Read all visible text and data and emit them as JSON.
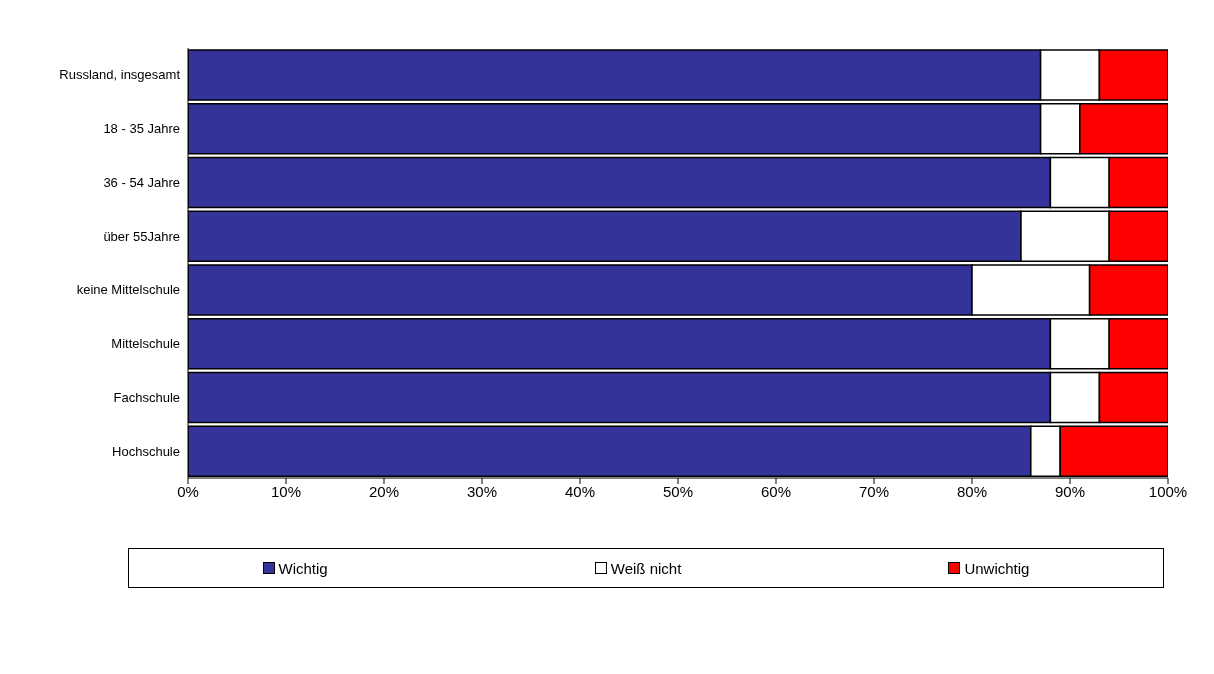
{
  "chart_data": {
    "type": "bar",
    "orientation": "horizontal",
    "stacked": true,
    "categories": [
      "Russland, insgesamt",
      "18 - 35 Jahre",
      "36 - 54 Jahre",
      "über 55Jahre",
      "keine Mittelschule",
      "Mittelschule",
      "Fachschule",
      "Hochschule"
    ],
    "series": [
      {
        "name": "Wichtig",
        "color": "#333399",
        "values": [
          87,
          87,
          88,
          85,
          80,
          88,
          88,
          86
        ]
      },
      {
        "name": "Weiß nicht",
        "color": "#ffffff",
        "values": [
          6,
          4,
          6,
          9,
          12,
          6,
          5,
          3
        ]
      },
      {
        "name": "Unwichtig",
        "color": "#ff0000",
        "values": [
          7,
          9,
          6,
          6,
          8,
          6,
          7,
          11
        ]
      }
    ],
    "xlim": [
      0,
      100
    ],
    "xticks": [
      {
        "value": 0,
        "label": "0%"
      },
      {
        "value": 10,
        "label": "10%"
      },
      {
        "value": 20,
        "label": "20%"
      },
      {
        "value": 30,
        "label": "30%"
      },
      {
        "value": 40,
        "label": "40%"
      },
      {
        "value": 50,
        "label": "50%"
      },
      {
        "value": 60,
        "label": "60%"
      },
      {
        "value": 70,
        "label": "70%"
      },
      {
        "value": 80,
        "label": "80%"
      },
      {
        "value": 90,
        "label": "90%"
      },
      {
        "value": 100,
        "label": "100%"
      }
    ],
    "grid": false,
    "legend": "bottom"
  }
}
